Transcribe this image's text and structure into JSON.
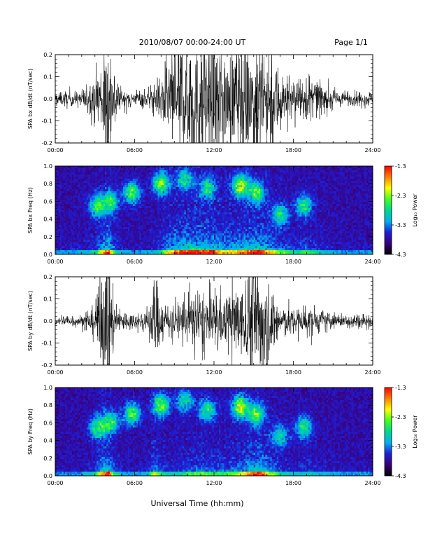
{
  "header": {
    "title": "2010/08/07  00:00-24:00 UT",
    "page_label": "Page 1/1"
  },
  "x_axis_label": "Universal Time (hh:mm)",
  "colorbar": {
    "label": "Log₁₀ Power",
    "ticks": [
      "-1.3",
      "-2.3",
      "-3.3",
      "-4.3"
    ],
    "range": [
      -4.3,
      -1.3
    ],
    "colors": [
      "#000000",
      "#3a007a",
      "#1e1ed8",
      "#00b0f0",
      "#00d890",
      "#40ff20",
      "#ffff00",
      "#ff8000",
      "#ff0000"
    ]
  },
  "chart_data": [
    {
      "type": "line",
      "ylabel": "SPA bx dB/dt (nT/sec)",
      "xlim": [
        "00:00",
        "24:00"
      ],
      "ylim": [
        -0.2,
        0.2
      ],
      "x_ticks": [
        "00:00",
        "06:00",
        "12:00",
        "18:00",
        "24:00"
      ],
      "y_ticks": [
        "0.2",
        "0.1",
        "0.0",
        "-0.1",
        "-0.2"
      ],
      "envelope_hour": [
        0,
        2,
        3,
        3.5,
        4,
        4.5,
        5,
        6,
        7,
        7.5,
        8,
        9,
        10,
        11,
        12,
        13,
        14,
        15,
        15.5,
        16,
        17,
        18,
        19,
        20,
        21,
        22,
        23,
        24
      ],
      "envelope_amp": [
        0.02,
        0.025,
        0.06,
        0.14,
        0.2,
        0.08,
        0.03,
        0.02,
        0.03,
        0.04,
        0.07,
        0.17,
        0.2,
        0.2,
        0.18,
        0.14,
        0.16,
        0.2,
        0.2,
        0.16,
        0.1,
        0.06,
        0.08,
        0.05,
        0.03,
        0.02,
        0.02,
        0.02
      ]
    },
    {
      "type": "heatmap",
      "ylabel": "SPA bx Freq (Hz)",
      "xlim": [
        "00:00",
        "24:00"
      ],
      "ylim": [
        0.0,
        1.0
      ],
      "x_ticks": [
        "00:00",
        "06:00",
        "12:00",
        "18:00",
        "24:00"
      ],
      "y_ticks": [
        "1.0",
        "0.8",
        "0.6",
        "0.4",
        "0.2",
        "0.0"
      ]
    },
    {
      "type": "line",
      "ylabel": "SPA by dB/dt (nT/sec)",
      "xlim": [
        "00:00",
        "24:00"
      ],
      "ylim": [
        -0.2,
        0.2
      ],
      "x_ticks": [
        "00:00",
        "06:00",
        "12:00",
        "18:00",
        "24:00"
      ],
      "y_ticks": [
        "0.2",
        "0.1",
        "0.0",
        "-0.1",
        "-0.2"
      ],
      "envelope_hour": [
        0,
        2,
        3,
        3.5,
        4,
        4.5,
        5,
        6,
        7,
        7.5,
        8,
        9,
        10,
        11,
        12,
        13,
        14,
        15,
        15.5,
        16,
        17,
        18,
        19,
        20,
        21,
        22,
        23,
        24
      ],
      "envelope_amp": [
        0.015,
        0.02,
        0.05,
        0.16,
        0.2,
        0.07,
        0.03,
        0.02,
        0.04,
        0.14,
        0.06,
        0.05,
        0.08,
        0.1,
        0.08,
        0.09,
        0.12,
        0.18,
        0.2,
        0.14,
        0.06,
        0.04,
        0.05,
        0.035,
        0.025,
        0.02,
        0.02,
        0.02
      ]
    },
    {
      "type": "heatmap",
      "ylabel": "SPA by Freq (Hz)",
      "xlim": [
        "00:00",
        "24:00"
      ],
      "ylim": [
        0.0,
        1.0
      ],
      "x_ticks": [
        "00:00",
        "06:00",
        "12:00",
        "18:00",
        "24:00"
      ],
      "y_ticks": [
        "1.0",
        "0.8",
        "0.6",
        "0.4",
        "0.2",
        "0.0"
      ]
    }
  ]
}
